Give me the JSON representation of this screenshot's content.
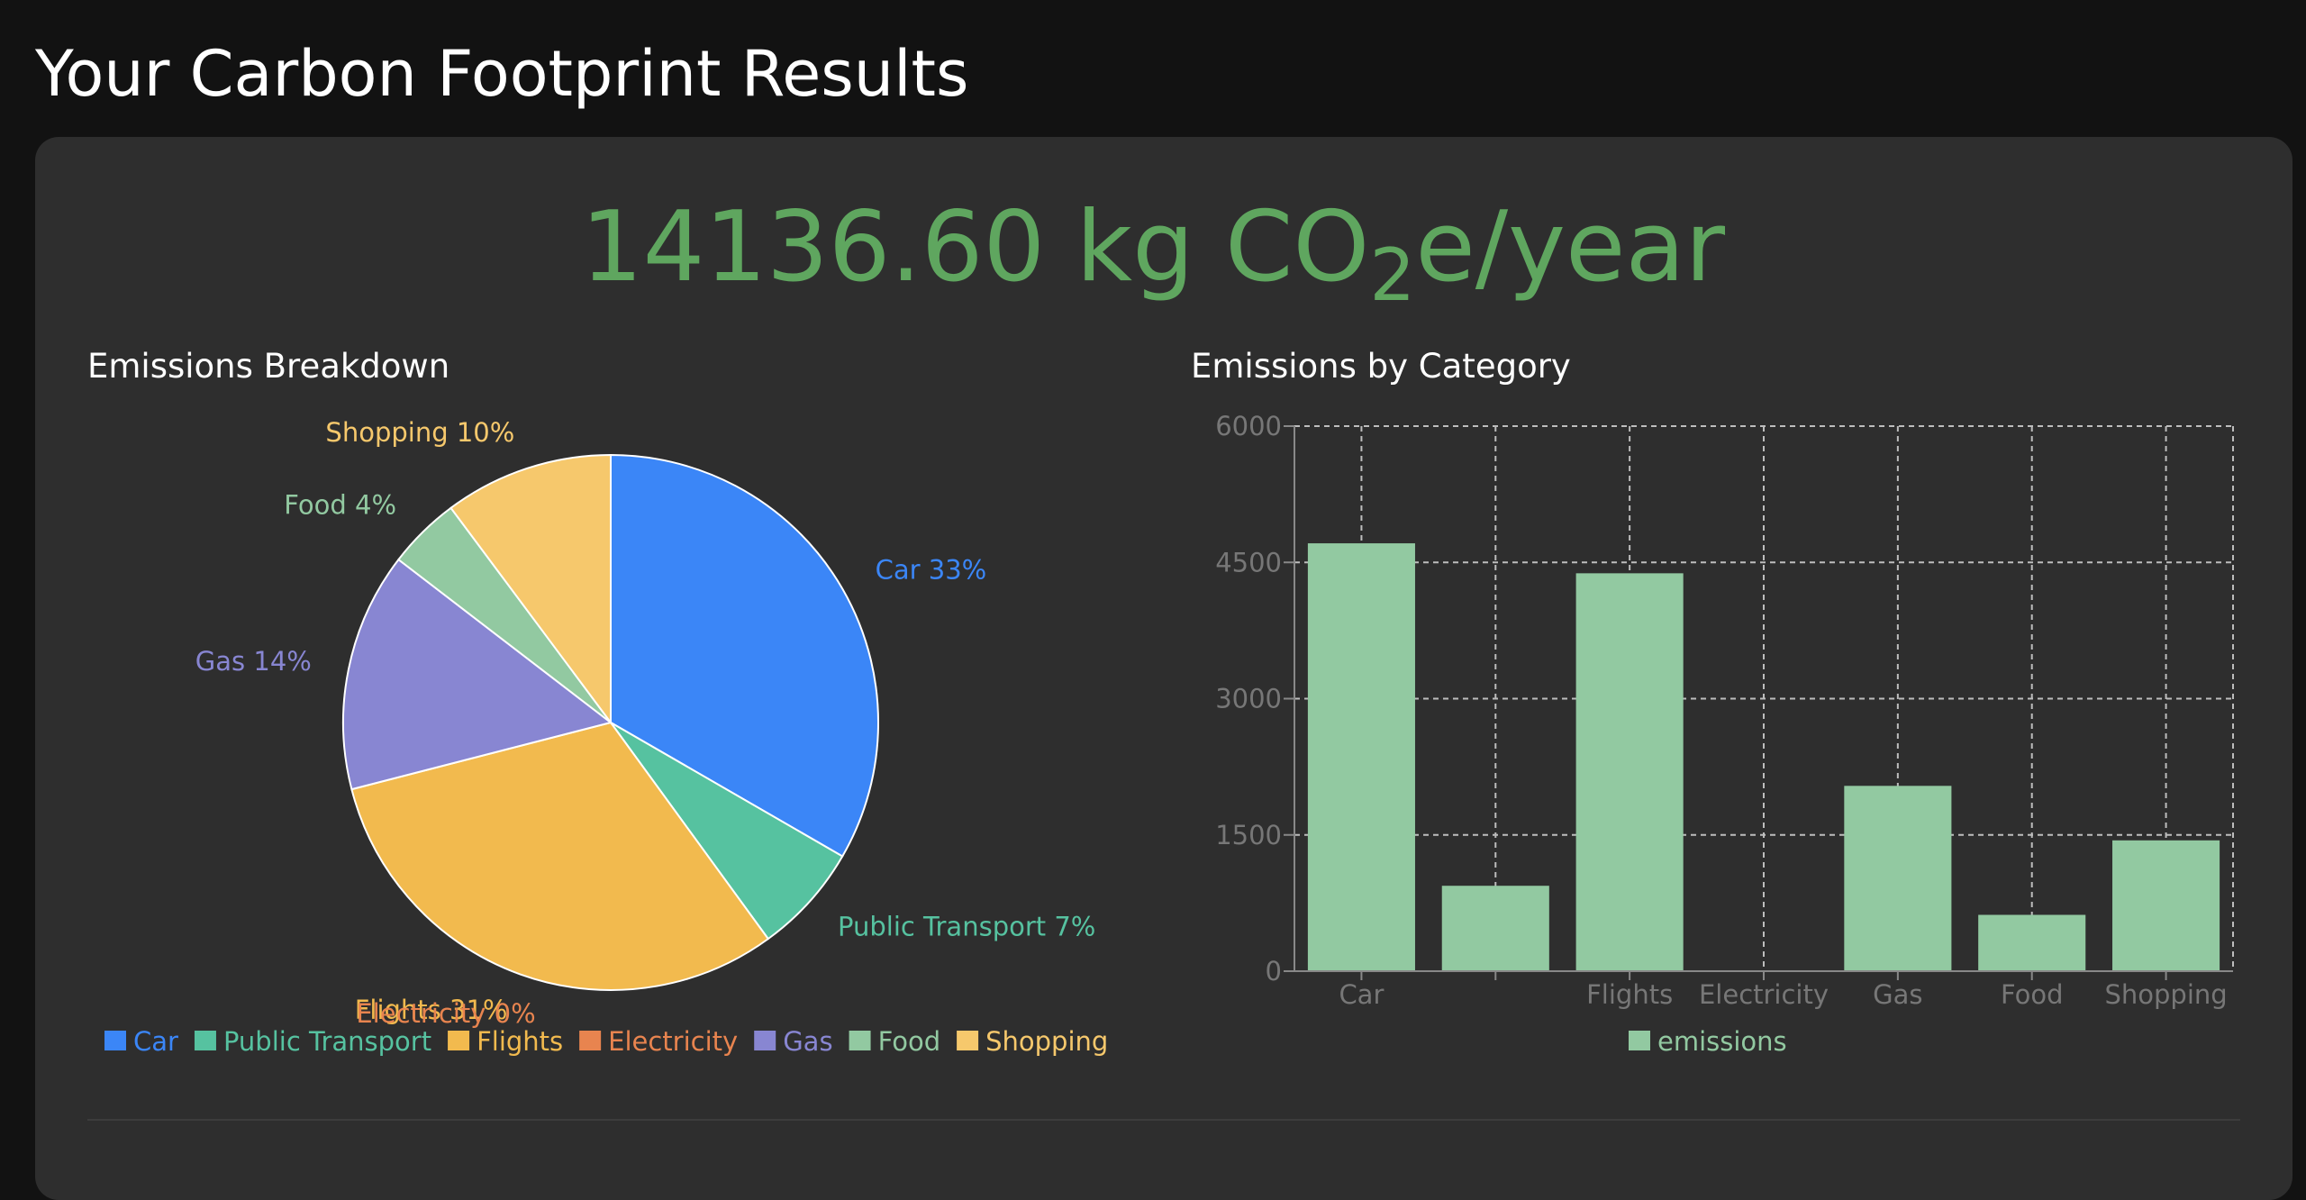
{
  "page": {
    "title": "Your Carbon Footprint Results"
  },
  "summary": {
    "total_value": "14136.60 kg CO",
    "subscript": "2",
    "unit_suffix": "e/year"
  },
  "colors": {
    "Car": "#3b86f7",
    "Public Transport": "#56c2a0",
    "Flights": "#f2ba4e",
    "Electricity": "#e8844f",
    "Gas": "#8886d2",
    "Food": "#92c9a1",
    "Shopping": "#f6c86c",
    "bar": "#92c9a1"
  },
  "chart_data": [
    {
      "type": "pie",
      "title": "Emissions Breakdown",
      "categories": [
        "Car",
        "Public Transport",
        "Flights",
        "Electricity",
        "Gas",
        "Food",
        "Shopping"
      ],
      "values": [
        4710,
        940,
        4380,
        0,
        2040,
        620,
        1440
      ],
      "slice_labels": [
        "Car 33%",
        "Public Transport 7%",
        "Flights 31%",
        "Electricity 0%",
        "Gas 14%",
        "Food 4%",
        "Shopping 10%"
      ],
      "legend": [
        "Car",
        "Public Transport",
        "Flights",
        "Electricity",
        "Gas",
        "Food",
        "Shopping"
      ],
      "legend_position": "bottom"
    },
    {
      "type": "bar",
      "title": "Emissions by Category",
      "categories": [
        "Car",
        "Public Transport",
        "Flights",
        "Electricity",
        "Gas",
        "Food",
        "Shopping"
      ],
      "tick_labels": [
        "Car",
        "",
        "Flights",
        "Electricity",
        "Gas",
        "Food",
        "Shopping"
      ],
      "series": [
        {
          "name": "emissions",
          "values": [
            4710,
            940,
            4380,
            0,
            2040,
            620,
            1440
          ]
        }
      ],
      "yticks": [
        "0",
        "1500",
        "3000",
        "4500",
        "6000"
      ],
      "ylim": [
        0,
        6000
      ],
      "grid": true,
      "legend_position": "bottom"
    }
  ]
}
